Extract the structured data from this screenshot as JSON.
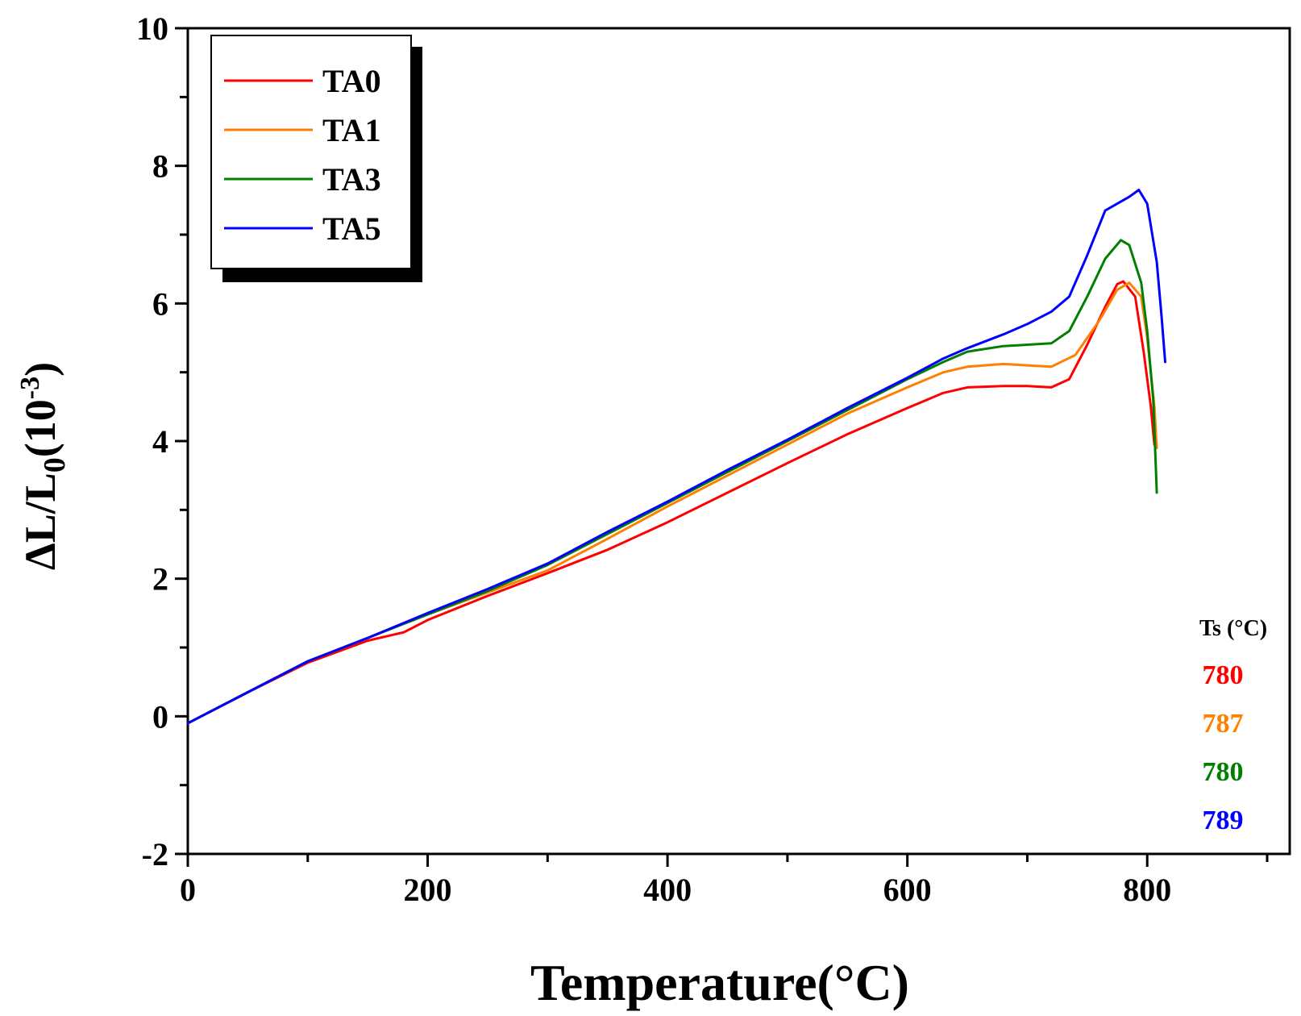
{
  "chart_data": {
    "type": "line",
    "xlabel": "Temperature(°C)",
    "ylabel": "ΔL/L0(10-3)",
    "ylabel_parts": {
      "main": "ΔL/L",
      "sub": "0",
      "open": "(10",
      "sup": "-3",
      "close": ")"
    },
    "xlim": [
      0,
      900
    ],
    "ylim": [
      -2,
      10
    ],
    "x_ticks": [
      0,
      200,
      400,
      600,
      800
    ],
    "x_tick_labels": [
      "0",
      "200",
      "400",
      "600",
      "800"
    ],
    "x_minor_ticks": [
      100,
      300,
      500,
      700,
      900
    ],
    "y_ticks": [
      -2,
      0,
      2,
      4,
      6,
      8,
      10
    ],
    "y_tick_labels": [
      "-2",
      "0",
      "2",
      "4",
      "6",
      "8",
      "10"
    ],
    "y_minor_ticks": [
      -1,
      1,
      3,
      5,
      7,
      9
    ],
    "grid": false,
    "legend_position": "top-left",
    "series": [
      {
        "name": "TA0",
        "color": "#ff0000",
        "points": [
          [
            0,
            -0.1
          ],
          [
            50,
            0.35
          ],
          [
            100,
            0.78
          ],
          [
            150,
            1.1
          ],
          [
            180,
            1.22
          ],
          [
            200,
            1.4
          ],
          [
            250,
            1.75
          ],
          [
            300,
            2.08
          ],
          [
            350,
            2.42
          ],
          [
            400,
            2.82
          ],
          [
            450,
            3.25
          ],
          [
            500,
            3.68
          ],
          [
            550,
            4.1
          ],
          [
            600,
            4.48
          ],
          [
            630,
            4.7
          ],
          [
            650,
            4.78
          ],
          [
            680,
            4.8
          ],
          [
            700,
            4.8
          ],
          [
            720,
            4.78
          ],
          [
            735,
            4.9
          ],
          [
            750,
            5.4
          ],
          [
            765,
            5.95
          ],
          [
            775,
            6.28
          ],
          [
            780,
            6.32
          ],
          [
            790,
            6.1
          ],
          [
            797,
            5.3
          ],
          [
            803,
            4.5
          ],
          [
            806,
            3.95
          ]
        ]
      },
      {
        "name": "TA1",
        "color": "#ff8000",
        "points": [
          [
            0,
            -0.1
          ],
          [
            50,
            0.35
          ],
          [
            100,
            0.8
          ],
          [
            150,
            1.14
          ],
          [
            200,
            1.48
          ],
          [
            250,
            1.8
          ],
          [
            300,
            2.12
          ],
          [
            350,
            2.58
          ],
          [
            400,
            3.05
          ],
          [
            450,
            3.5
          ],
          [
            500,
            3.95
          ],
          [
            550,
            4.4
          ],
          [
            600,
            4.78
          ],
          [
            630,
            5.0
          ],
          [
            650,
            5.08
          ],
          [
            680,
            5.12
          ],
          [
            700,
            5.1
          ],
          [
            720,
            5.08
          ],
          [
            740,
            5.25
          ],
          [
            760,
            5.75
          ],
          [
            775,
            6.2
          ],
          [
            785,
            6.3
          ],
          [
            795,
            6.1
          ],
          [
            800,
            5.5
          ],
          [
            806,
            4.5
          ],
          [
            808,
            3.9
          ]
        ]
      },
      {
        "name": "TA3",
        "color": "#008000",
        "points": [
          [
            0,
            -0.1
          ],
          [
            50,
            0.35
          ],
          [
            100,
            0.8
          ],
          [
            150,
            1.14
          ],
          [
            200,
            1.48
          ],
          [
            250,
            1.82
          ],
          [
            300,
            2.2
          ],
          [
            350,
            2.65
          ],
          [
            400,
            3.1
          ],
          [
            450,
            3.55
          ],
          [
            500,
            4.0
          ],
          [
            550,
            4.45
          ],
          [
            600,
            4.9
          ],
          [
            630,
            5.15
          ],
          [
            650,
            5.3
          ],
          [
            680,
            5.38
          ],
          [
            700,
            5.4
          ],
          [
            720,
            5.42
          ],
          [
            735,
            5.6
          ],
          [
            750,
            6.1
          ],
          [
            765,
            6.65
          ],
          [
            778,
            6.92
          ],
          [
            785,
            6.85
          ],
          [
            795,
            6.3
          ],
          [
            800,
            5.6
          ],
          [
            805,
            4.6
          ],
          [
            808,
            3.25
          ]
        ]
      },
      {
        "name": "TA5",
        "color": "#0000ff",
        "points": [
          [
            0,
            -0.1
          ],
          [
            50,
            0.35
          ],
          [
            100,
            0.8
          ],
          [
            150,
            1.14
          ],
          [
            200,
            1.5
          ],
          [
            250,
            1.85
          ],
          [
            300,
            2.22
          ],
          [
            350,
            2.68
          ],
          [
            400,
            3.12
          ],
          [
            450,
            3.58
          ],
          [
            500,
            4.02
          ],
          [
            550,
            4.48
          ],
          [
            600,
            4.92
          ],
          [
            630,
            5.2
          ],
          [
            650,
            5.35
          ],
          [
            680,
            5.55
          ],
          [
            700,
            5.7
          ],
          [
            720,
            5.88
          ],
          [
            735,
            6.1
          ],
          [
            750,
            6.7
          ],
          [
            765,
            7.35
          ],
          [
            775,
            7.45
          ],
          [
            785,
            7.55
          ],
          [
            793,
            7.65
          ],
          [
            800,
            7.45
          ],
          [
            808,
            6.6
          ],
          [
            812,
            5.8
          ],
          [
            815,
            5.15
          ]
        ]
      }
    ]
  },
  "ts_table": {
    "header": "Ts (°C)",
    "values": [
      {
        "text": "780",
        "color": "#ff0000"
      },
      {
        "text": "787",
        "color": "#ff8000"
      },
      {
        "text": "780",
        "color": "#008000"
      },
      {
        "text": "789",
        "color": "#0000ff"
      }
    ]
  }
}
